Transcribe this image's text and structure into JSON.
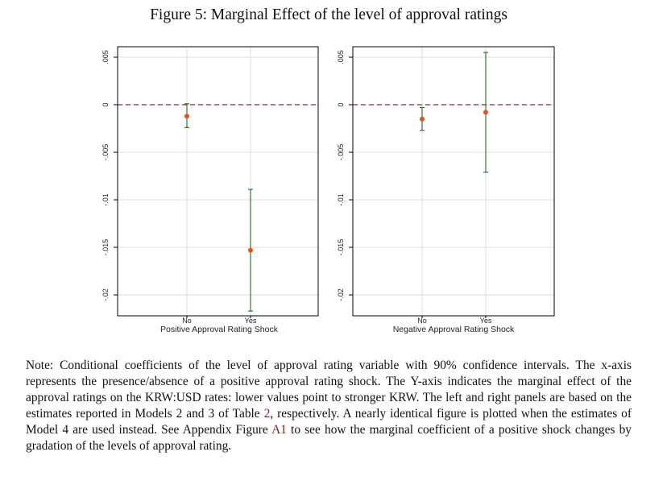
{
  "figure": {
    "title": "Figure 5:  Marginal Effect of the level of approval ratings"
  },
  "colors": {
    "point": "#e8501a",
    "ci": "#1f6b1f",
    "zero_line": "#8b2c3c",
    "grid": "#dedede",
    "reference_link": "#8b1a1a"
  },
  "chart_data": [
    {
      "type": "scatter",
      "panel": "left",
      "title": "",
      "xlabel": "Positive Approval Rating Shock",
      "ylabel": "",
      "categories": [
        "No",
        "Yes"
      ],
      "y_ticks": [
        ".005",
        "0",
        "-.005",
        "-.01",
        "-.015",
        "-.02"
      ],
      "y_tick_values": [
        0.005,
        0,
        -0.005,
        -0.01,
        -0.015,
        -0.02
      ],
      "ylim": [
        -0.0222,
        0.0061
      ],
      "grid": true,
      "reference_line": 0,
      "series": [
        {
          "estimates": [
            -0.0012,
            -0.0153
          ],
          "ci_low": [
            -0.0024,
            -0.0217
          ],
          "ci_high": [
            0.0001,
            -0.0089
          ]
        }
      ]
    },
    {
      "type": "scatter",
      "panel": "right",
      "title": "",
      "xlabel": "Negative Approval Rating Shock",
      "ylabel": "",
      "categories": [
        "No",
        "Yes"
      ],
      "y_ticks": [
        ".005",
        "0",
        "-.005",
        "-.01",
        "-.015",
        "-.02"
      ],
      "y_tick_values": [
        0.005,
        0,
        -0.005,
        -0.01,
        -0.015,
        -0.02
      ],
      "ylim": [
        -0.0222,
        0.0061
      ],
      "grid": true,
      "reference_line": 0,
      "series": [
        {
          "estimates": [
            -0.0015,
            -0.0008
          ],
          "ci_low": [
            -0.0027,
            -0.0071
          ],
          "ci_high": [
            -0.0003,
            0.0055
          ]
        }
      ]
    }
  ],
  "note": {
    "text_1": "Note: Conditional coefficients of the level of approval rating variable with 90% confidence intervals. The x-axis represents the presence/absence of a positive approval rating shock.  The Y-axis indicates the marginal effect of the approval ratings on the KRW:USD rates: lower values point to stronger KRW. The left and right panels are based on the estimates reported in Models 2 and 3 of Table ",
    "ref_table": "2",
    "text_2": ", respectively. A nearly identical figure is plotted when the estimates of Model 4 are used instead.  See Appendix Figure ",
    "ref_figure": "A1",
    "text_3": " to see how the marginal coefficient of a positive shock changes by gradation of the levels of approval rating."
  }
}
